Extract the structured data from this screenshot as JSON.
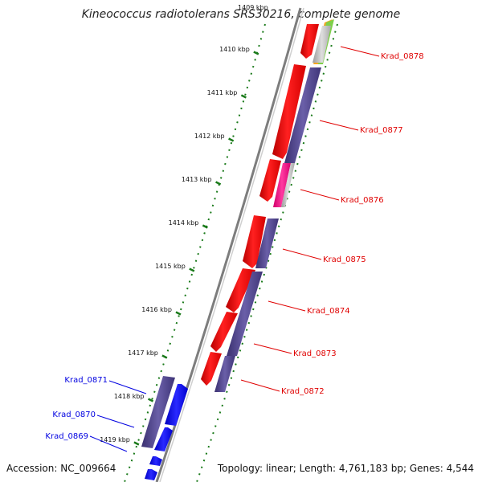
{
  "title": "Kineococcus radiotolerans SRS30216, complete genome",
  "top_tick_partial": "1409 kbp",
  "ticks": [
    "1410 kbp",
    "1411 kbp",
    "1412 kbp",
    "1413 kbp",
    "1414 kbp",
    "1415 kbp",
    "1416 kbp",
    "1417 kbp",
    "1418 kbp",
    "1419 kbp"
  ],
  "genes_right": [
    "Krad_0878",
    "Krad_0877",
    "Krad_0876",
    "Krad_0875",
    "Krad_0874",
    "Krad_0873",
    "Krad_0872"
  ],
  "genes_left": [
    "Krad_0871",
    "Krad_0870",
    "Krad_0869"
  ],
  "footer": {
    "accession": "Accession: NC_009664",
    "topology": "Topology: linear; Length: 4,761,183 bp; Genes: 4,544"
  },
  "colors": {
    "forward": "#ff0000",
    "reverse": "#4b3f8a",
    "blue": "#0000ff",
    "pink": "#ff1a8c",
    "gray": "#b5b5b5",
    "tick_green": "#1a7a1a",
    "label_red": "#e00000",
    "label_blue": "#0000e0",
    "backbone": "#8a8a8a"
  }
}
